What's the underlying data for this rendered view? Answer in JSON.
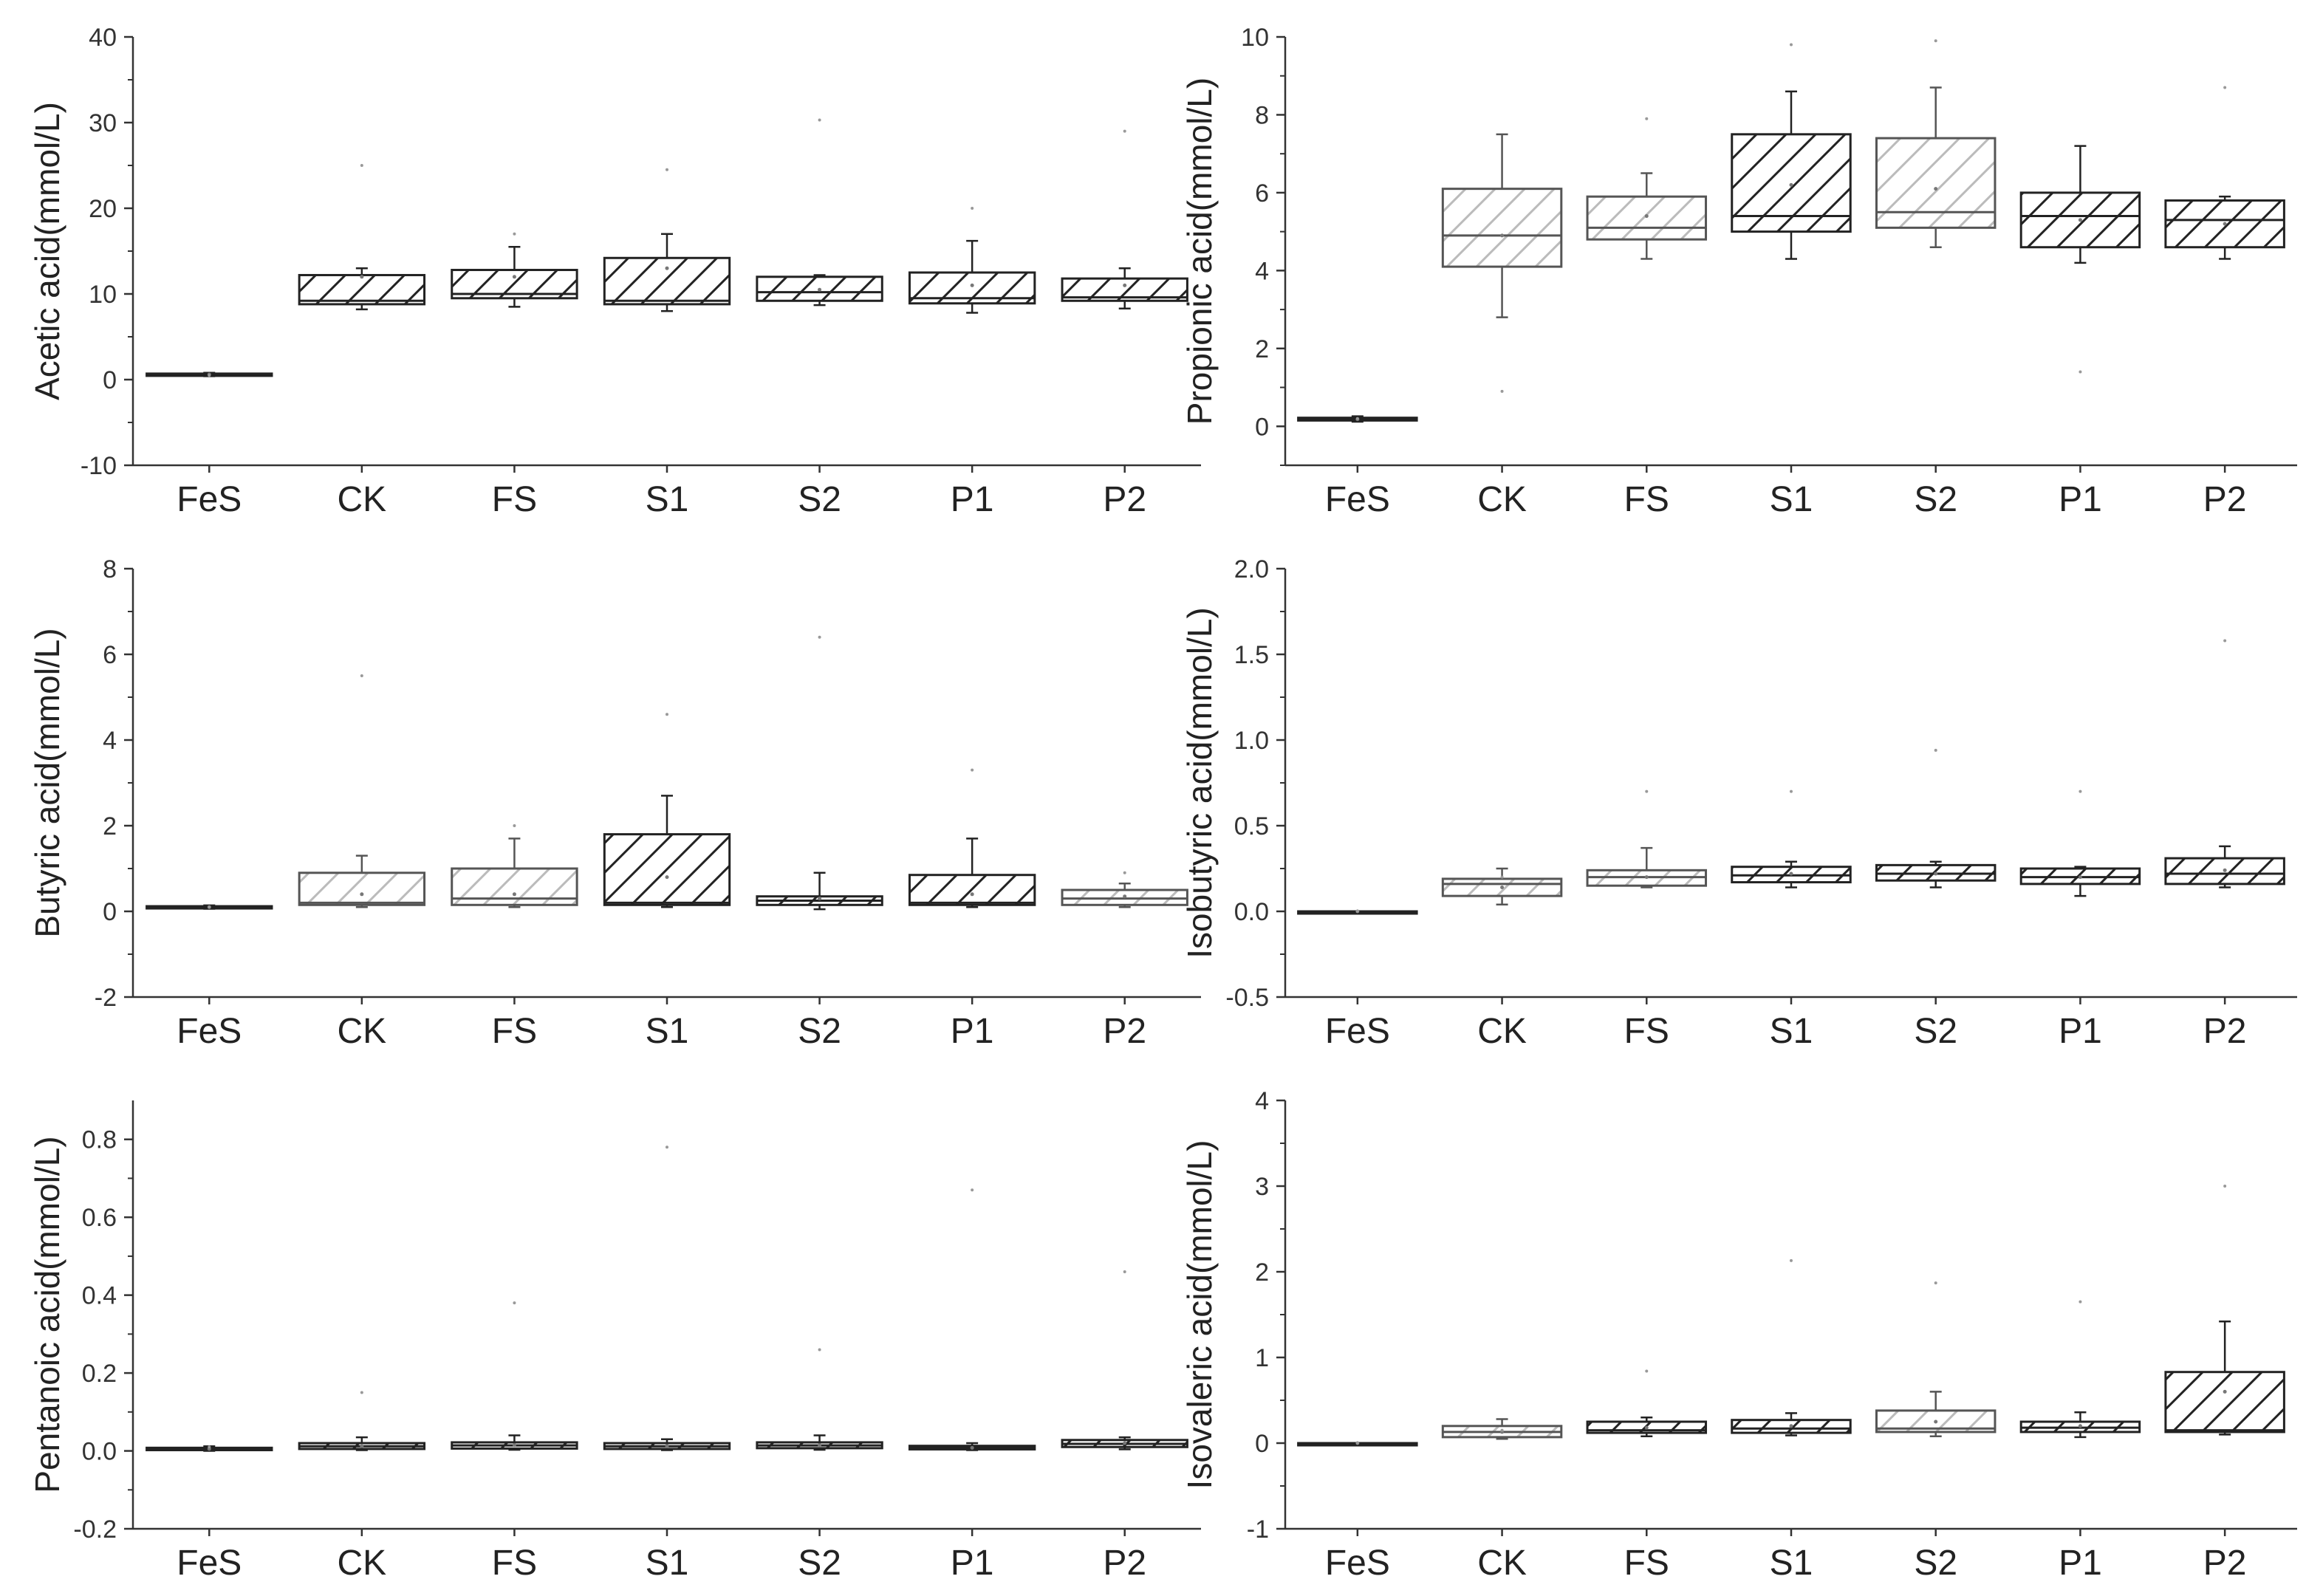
{
  "chart_data": [
    {
      "type": "box",
      "ylabel": "Acetic acid(mmol/L)",
      "categories": [
        "FeS",
        "CK",
        "FS",
        "S1",
        "S2",
        "P1",
        "P2"
      ],
      "ylim": [
        -10,
        40
      ],
      "yticks": [
        -10,
        0,
        10,
        20,
        30,
        40
      ],
      "boxes": [
        {
          "min": 0.4,
          "q1": 0.5,
          "median": 0.6,
          "q3": 0.7,
          "max": 0.8,
          "mean": 0.6,
          "outlier": 0.5
        },
        {
          "min": 8.2,
          "q1": 8.8,
          "median": 9.2,
          "q3": 12.2,
          "max": 13.0,
          "mean": 12.0,
          "outlier": 25.0
        },
        {
          "min": 8.5,
          "q1": 9.5,
          "median": 10.0,
          "q3": 12.8,
          "max": 15.5,
          "mean": 12.0,
          "outlier": 17.0
        },
        {
          "min": 8.0,
          "q1": 8.8,
          "median": 9.2,
          "q3": 14.2,
          "max": 17.0,
          "mean": 13.0,
          "outlier": 24.5
        },
        {
          "min": 8.7,
          "q1": 9.2,
          "median": 10.2,
          "q3": 12.0,
          "max": 12.2,
          "mean": 10.5,
          "outlier": 30.3
        },
        {
          "min": 7.8,
          "q1": 8.9,
          "median": 9.5,
          "q3": 12.5,
          "max": 16.2,
          "mean": 11.0,
          "outlier": 20.0
        },
        {
          "min": 8.3,
          "q1": 9.2,
          "median": 9.6,
          "q3": 11.8,
          "max": 13.0,
          "mean": 11.0,
          "outlier": 29.0
        }
      ]
    },
    {
      "type": "box",
      "ylabel": "Propionic acid(mmol/L)",
      "categories": [
        "FeS",
        "CK",
        "FS",
        "S1",
        "S2",
        "P1",
        "P2"
      ],
      "ylim": [
        -1,
        10
      ],
      "yticks": [
        0,
        2,
        4,
        6,
        8,
        10
      ],
      "boxes": [
        {
          "min": 0.12,
          "q1": 0.15,
          "median": 0.18,
          "q3": 0.22,
          "max": 0.26,
          "mean": 0.18,
          "outlier": 0.2
        },
        {
          "min": 2.8,
          "q1": 4.1,
          "median": 4.9,
          "q3": 6.1,
          "max": 7.5,
          "mean": 4.9,
          "outlier": 0.9
        },
        {
          "min": 4.3,
          "q1": 4.8,
          "median": 5.1,
          "q3": 5.9,
          "max": 6.5,
          "mean": 5.4,
          "outlier": 7.9
        },
        {
          "min": 4.3,
          "q1": 5.0,
          "median": 5.4,
          "q3": 7.5,
          "max": 8.6,
          "mean": 6.2,
          "outlier": 9.8
        },
        {
          "min": 4.6,
          "q1": 5.1,
          "median": 5.5,
          "q3": 7.4,
          "max": 8.7,
          "mean": 6.1,
          "outlier": 9.9
        },
        {
          "min": 4.2,
          "q1": 4.6,
          "median": 5.4,
          "q3": 6.0,
          "max": 7.2,
          "mean": 5.3,
          "outlier": 1.4
        },
        {
          "min": 4.3,
          "q1": 4.6,
          "median": 5.3,
          "q3": 5.8,
          "max": 5.9,
          "mean": 5.2,
          "outlier": 8.7
        }
      ]
    },
    {
      "type": "box",
      "ylabel": "Butyric acid(mmol/L)",
      "categories": [
        "FeS",
        "CK",
        "FS",
        "S1",
        "S2",
        "P1",
        "P2"
      ],
      "ylim": [
        -2,
        8
      ],
      "yticks": [
        -2,
        0,
        2,
        4,
        6,
        8
      ],
      "boxes": [
        {
          "min": 0.06,
          "q1": 0.08,
          "median": 0.1,
          "q3": 0.12,
          "max": 0.14,
          "mean": 0.1,
          "outlier": 0.1
        },
        {
          "min": 0.1,
          "q1": 0.15,
          "median": 0.2,
          "q3": 0.9,
          "max": 1.3,
          "mean": 0.4,
          "outlier": 5.5
        },
        {
          "min": 0.1,
          "q1": 0.15,
          "median": 0.3,
          "q3": 1.0,
          "max": 1.7,
          "mean": 0.4,
          "outlier": 2.0
        },
        {
          "min": 0.1,
          "q1": 0.15,
          "median": 0.2,
          "q3": 1.8,
          "max": 2.7,
          "mean": 0.8,
          "outlier": 4.6
        },
        {
          "min": 0.05,
          "q1": 0.15,
          "median": 0.25,
          "q3": 0.35,
          "max": 0.9,
          "mean": 0.3,
          "outlier": 6.4
        },
        {
          "min": 0.1,
          "q1": 0.15,
          "median": 0.2,
          "q3": 0.85,
          "max": 1.7,
          "mean": 0.4,
          "outlier": 3.3
        },
        {
          "min": 0.1,
          "q1": 0.15,
          "median": 0.3,
          "q3": 0.5,
          "max": 0.65,
          "mean": 0.35,
          "outlier": 0.9
        }
      ]
    },
    {
      "type": "box",
      "ylabel": "Isobutyric acid(mmol/L)",
      "categories": [
        "FeS",
        "CK",
        "FS",
        "S1",
        "S2",
        "P1",
        "P2"
      ],
      "ylim": [
        -0.5,
        2.0
      ],
      "yticks": [
        -0.5,
        0.0,
        0.5,
        1.0,
        1.5,
        2.0
      ],
      "boxes": [
        {
          "min": 0.0,
          "q1": 0.0,
          "median": 0.0,
          "q3": 0.0,
          "max": 0.0,
          "mean": 0.0,
          "outlier": 0.0
        },
        {
          "min": 0.04,
          "q1": 0.09,
          "median": 0.16,
          "q3": 0.19,
          "max": 0.25,
          "mean": 0.14,
          "outlier": 0.2
        },
        {
          "min": 0.14,
          "q1": 0.15,
          "median": 0.2,
          "q3": 0.24,
          "max": 0.37,
          "mean": 0.2,
          "outlier": 0.7
        },
        {
          "min": 0.14,
          "q1": 0.17,
          "median": 0.21,
          "q3": 0.26,
          "max": 0.29,
          "mean": 0.22,
          "outlier": 0.7
        },
        {
          "min": 0.14,
          "q1": 0.18,
          "median": 0.22,
          "q3": 0.27,
          "max": 0.29,
          "mean": 0.22,
          "outlier": 0.94
        },
        {
          "min": 0.09,
          "q1": 0.16,
          "median": 0.2,
          "q3": 0.25,
          "max": 0.26,
          "mean": 0.2,
          "outlier": 0.7
        },
        {
          "min": 0.14,
          "q1": 0.16,
          "median": 0.22,
          "q3": 0.31,
          "max": 0.38,
          "mean": 0.24,
          "outlier": 1.58
        }
      ]
    },
    {
      "type": "box",
      "ylabel": "Pentanoic acid(mmol/L)",
      "categories": [
        "FeS",
        "CK",
        "FS",
        "S1",
        "S2",
        "P1",
        "P2"
      ],
      "ylim": [
        -0.2,
        0.9
      ],
      "yticks": [
        -0.2,
        0.0,
        0.2,
        0.4,
        0.6,
        0.8
      ],
      "boxes": [
        {
          "min": 0.0,
          "q1": 0.002,
          "median": 0.005,
          "q3": 0.008,
          "max": 0.012,
          "mean": 0.005,
          "outlier": 0.01
        },
        {
          "min": 0.002,
          "q1": 0.005,
          "median": 0.012,
          "q3": 0.02,
          "max": 0.035,
          "mean": 0.012,
          "outlier": 0.15
        },
        {
          "min": 0.003,
          "q1": 0.006,
          "median": 0.014,
          "q3": 0.022,
          "max": 0.04,
          "mean": 0.015,
          "outlier": 0.38
        },
        {
          "min": 0.002,
          "q1": 0.005,
          "median": 0.012,
          "q3": 0.02,
          "max": 0.03,
          "mean": 0.013,
          "outlier": 0.78
        },
        {
          "min": 0.003,
          "q1": 0.007,
          "median": 0.014,
          "q3": 0.022,
          "max": 0.04,
          "mean": 0.015,
          "outlier": 0.26
        },
        {
          "min": 0.002,
          "q1": 0.004,
          "median": 0.008,
          "q3": 0.013,
          "max": 0.02,
          "mean": 0.008,
          "outlier": 0.67
        },
        {
          "min": 0.004,
          "q1": 0.01,
          "median": 0.018,
          "q3": 0.028,
          "max": 0.035,
          "mean": 0.02,
          "outlier": 0.46
        }
      ]
    },
    {
      "type": "box",
      "ylabel": "Isovaleric acid(mmol/L)",
      "categories": [
        "FeS",
        "CK",
        "FS",
        "S1",
        "S2",
        "P1",
        "P2"
      ],
      "ylim": [
        -1,
        4
      ],
      "yticks": [
        -1,
        0,
        1,
        2,
        3,
        4
      ],
      "boxes": [
        {
          "min": 0.0,
          "q1": 0.0,
          "median": 0.0,
          "q3": 0.0,
          "max": 0.0,
          "mean": 0.0,
          "outlier": 0.0
        },
        {
          "min": 0.05,
          "q1": 0.07,
          "median": 0.13,
          "q3": 0.2,
          "max": 0.28,
          "mean": 0.13,
          "outlier": 0.15
        },
        {
          "min": 0.08,
          "q1": 0.12,
          "median": 0.15,
          "q3": 0.25,
          "max": 0.3,
          "mean": 0.18,
          "outlier": 0.84
        },
        {
          "min": 0.09,
          "q1": 0.12,
          "median": 0.17,
          "q3": 0.27,
          "max": 0.35,
          "mean": 0.2,
          "outlier": 2.13
        },
        {
          "min": 0.08,
          "q1": 0.13,
          "median": 0.17,
          "q3": 0.38,
          "max": 0.6,
          "mean": 0.25,
          "outlier": 1.87
        },
        {
          "min": 0.07,
          "q1": 0.13,
          "median": 0.18,
          "q3": 0.25,
          "max": 0.36,
          "mean": 0.2,
          "outlier": 1.65
        },
        {
          "min": 0.1,
          "q1": 0.13,
          "median": 0.15,
          "q3": 0.83,
          "max": 1.42,
          "mean": 0.6,
          "outlier": 3.0
        }
      ]
    }
  ]
}
